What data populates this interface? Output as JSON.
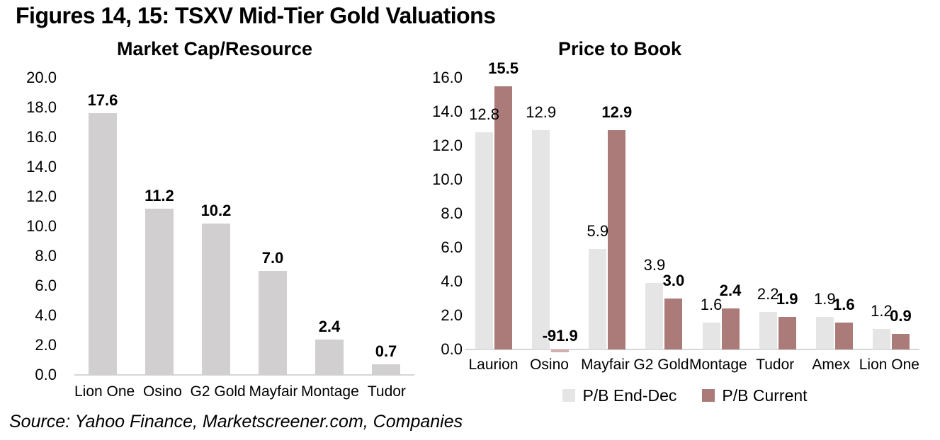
{
  "page": {
    "title": "Figures 14, 15: TSXV Mid-Tier Gold Valuations",
    "source": "Source: Yahoo Finance, Marketscreener.com, Companies"
  },
  "colors": {
    "axis_line": "#d6d6d6",
    "clipped_negative_bar": "#d3afae",
    "text": "#000000"
  },
  "chart_data": [
    {
      "type": "bar",
      "title": "Market Cap/Resource",
      "categories": [
        "Lion One",
        "Osino",
        "G2 Gold",
        "Mayfair",
        "Montage",
        "Tudor"
      ],
      "series": [
        {
          "name": "Market Cap/Resource",
          "color": "#d1cfcf",
          "bold_labels": true,
          "values": [
            17.6,
            11.2,
            10.2,
            7.0,
            2.4,
            0.7
          ],
          "labels": [
            "17.6",
            "11.2",
            "10.2",
            "7.0",
            "2.4",
            "0.7"
          ]
        }
      ],
      "xlabel": "",
      "ylabel": "",
      "ylim": [
        0,
        20
      ],
      "ytick_step": 2,
      "grid": false,
      "legend": false
    },
    {
      "type": "bar",
      "title": "Price to Book",
      "categories": [
        "Laurion",
        "Osino",
        "Mayfair",
        "G2 Gold",
        "Montage",
        "Tudor",
        "Amex",
        "Lion One"
      ],
      "series": [
        {
          "name": "P/B End-Dec",
          "color": "#e6e5e5",
          "bold_labels": false,
          "values": [
            12.8,
            12.9,
            5.9,
            3.9,
            1.6,
            2.2,
            1.9,
            1.2
          ],
          "labels": [
            "12.8",
            "12.9",
            "5.9",
            "3.9",
            "1.6",
            "2.2",
            "1.9",
            "1.2"
          ]
        },
        {
          "name": "P/B Current",
          "color": "#ab7b7a",
          "bold_labels": true,
          "values": [
            15.5,
            -91.9,
            12.9,
            3.0,
            2.4,
            1.9,
            1.6,
            0.9
          ],
          "labels": [
            "15.5",
            "-91.9",
            "12.9",
            "3.0",
            "2.4",
            "1.9",
            "1.6",
            "0.9"
          ]
        }
      ],
      "xlabel": "",
      "ylabel": "",
      "ylim": [
        0,
        16
      ],
      "ytick_step": 2,
      "grid": false,
      "legend": true,
      "legend_position": "bottom"
    }
  ]
}
